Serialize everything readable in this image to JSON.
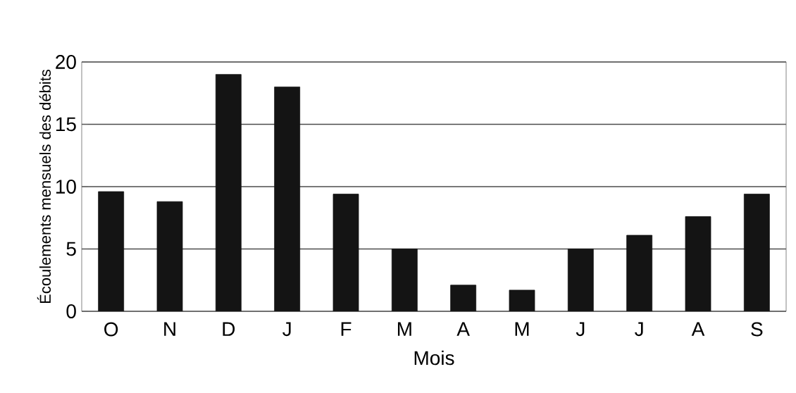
{
  "chart_data": {
    "type": "bar",
    "xlabel": "Mois",
    "ylabel": "Écoulements mensuels des débits",
    "categories": [
      "O",
      "N",
      "D",
      "J",
      "F",
      "M",
      "A",
      "M",
      "J",
      "J",
      "A",
      "S"
    ],
    "values": [
      9.6,
      8.8,
      19.0,
      18.0,
      9.4,
      5.0,
      2.1,
      1.7,
      5.0,
      6.1,
      7.6,
      9.4
    ],
    "color": "#141414",
    "ylim": [
      0,
      20
    ],
    "yticks": [
      0,
      5,
      10,
      15,
      20
    ],
    "grid": "y"
  }
}
